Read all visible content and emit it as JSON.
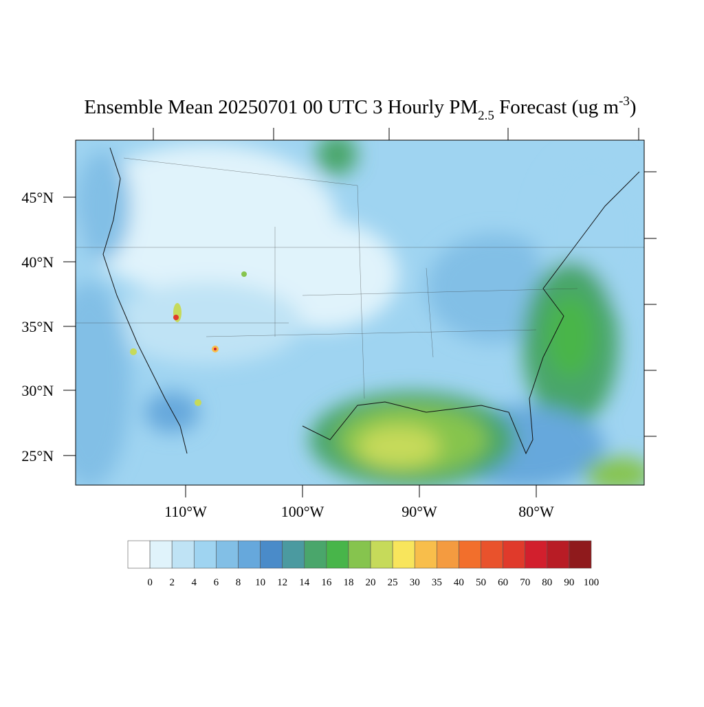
{
  "title": {
    "main": "Ensemble Mean 20250701 00 UTC 3 Hourly PM",
    "subscript": "2.5",
    "after": " Forecast (ug m",
    "superscript": "-3",
    "end": ")"
  },
  "map": {
    "lat_labels": [
      "45°N",
      "40°N",
      "35°N",
      "30°N",
      "25°N"
    ],
    "lon_labels": [
      "110°W",
      "100°W",
      "90°W",
      "80°W"
    ]
  },
  "colorbar": {
    "colors": [
      "#ffffff",
      "#e0f3fb",
      "#bfe3f5",
      "#9fd4f1",
      "#82bfe6",
      "#66a8dc",
      "#4a8bc9",
      "#4b9aa0",
      "#4aa66b",
      "#48b54a",
      "#86c44e",
      "#c6da5a",
      "#f8e55c",
      "#f8be4b",
      "#f49b40",
      "#f26f2c",
      "#e9522c",
      "#e03a2b",
      "#d21f2d",
      "#b81c25",
      "#8f1a1c"
    ],
    "labels": [
      "0",
      "2",
      "4",
      "6",
      "8",
      "10",
      "12",
      "14",
      "16",
      "18",
      "20",
      "25",
      "30",
      "35",
      "40",
      "50",
      "60",
      "70",
      "80",
      "90",
      "100"
    ]
  }
}
